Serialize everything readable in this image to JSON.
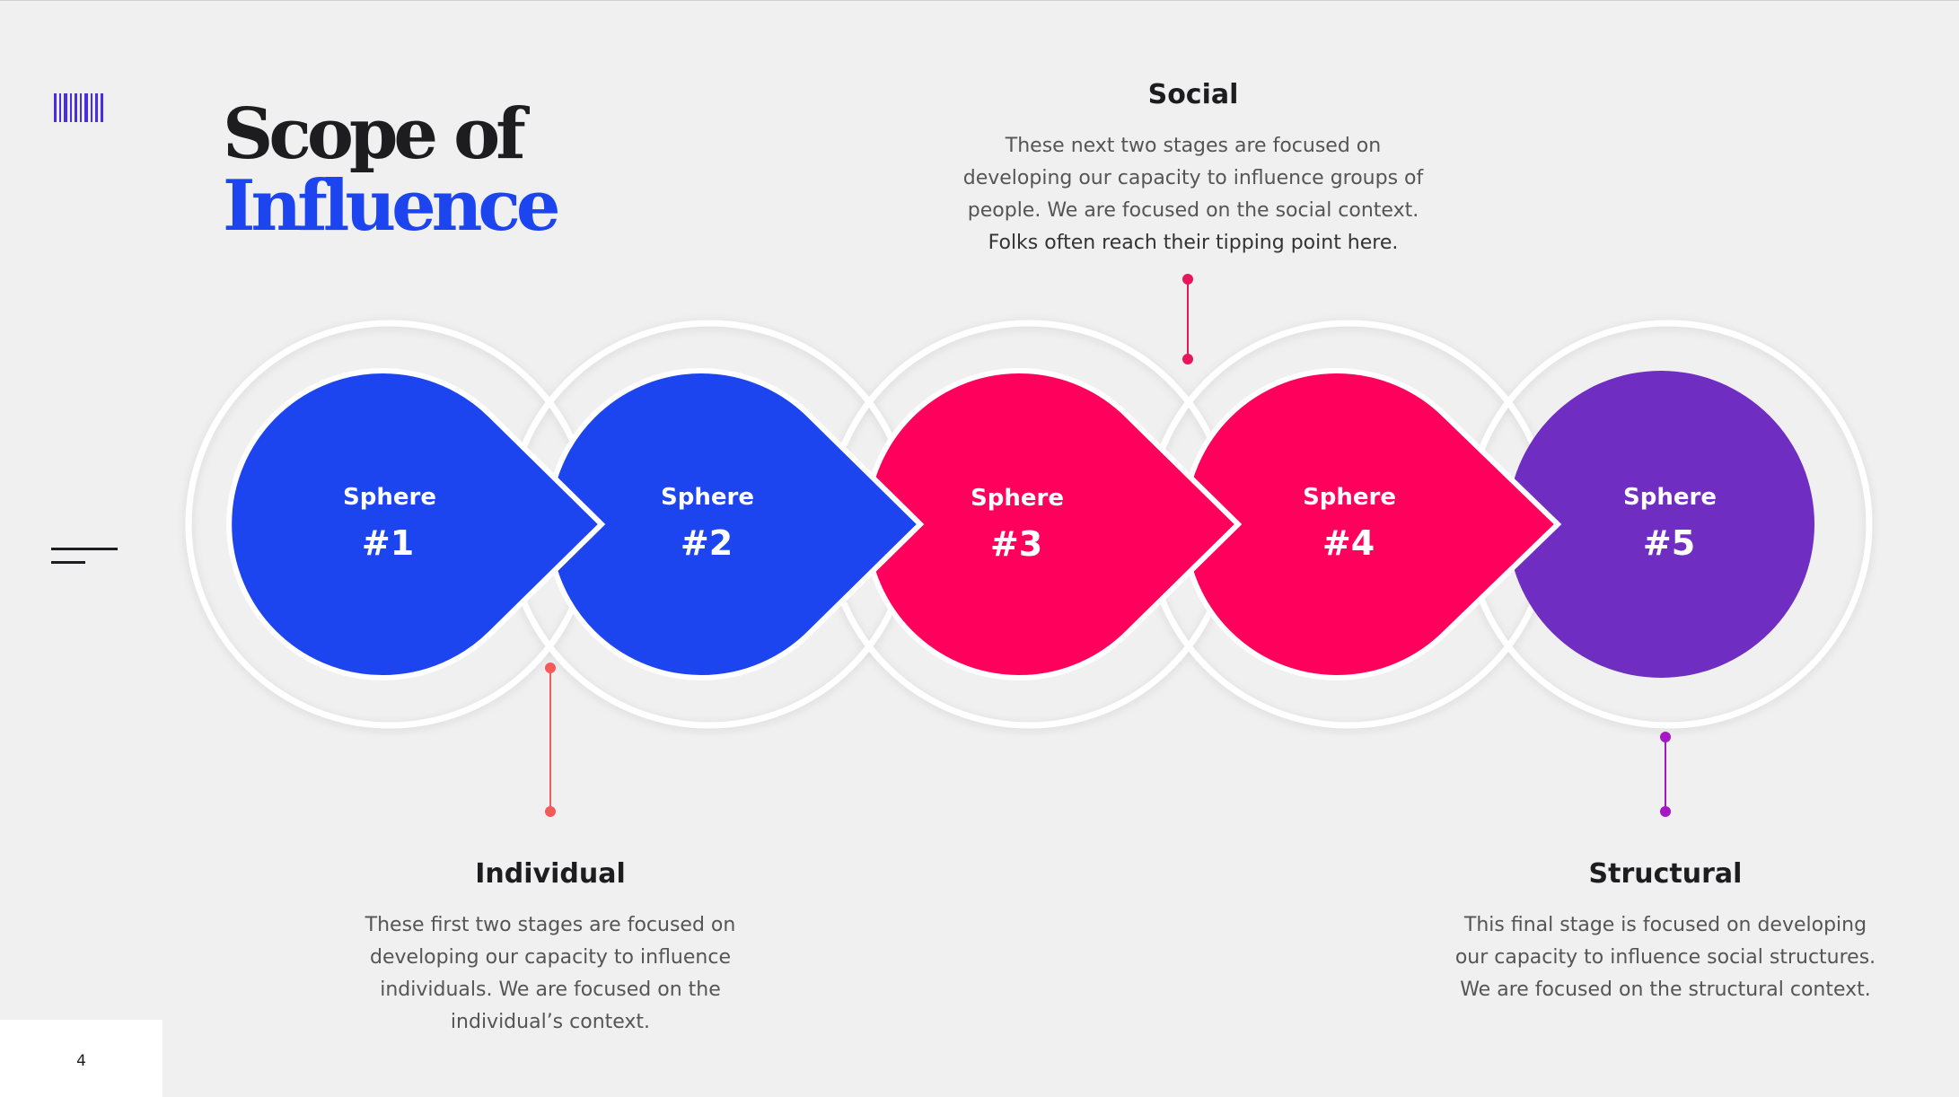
{
  "title": {
    "line1": "Scope of",
    "line2": "Influence"
  },
  "colors": {
    "blue": "#1c44ef",
    "pink": "#ff005c",
    "purple": "#6f2dc1",
    "accent_red": "#f55a5a",
    "accent_pink": "#e8175d",
    "accent_purple": "#a617c4"
  },
  "spheres": [
    {
      "label": "Sphere",
      "number": "#1"
    },
    {
      "label": "Sphere",
      "number": "#2"
    },
    {
      "label": "Sphere",
      "number": "#3"
    },
    {
      "label": "Sphere",
      "number": "#4"
    },
    {
      "label": "Sphere",
      "number": "#5"
    }
  ],
  "social": {
    "heading": "Social",
    "line1": "These next two stages are focused on",
    "line2": "developing our capacity to influence groups of",
    "line3": "people. We are focused on the social context.",
    "line4": "Folks often reach their tipping point here."
  },
  "individual": {
    "heading": "Individual",
    "line1": "These first two stages are focused on",
    "line2": "developing our capacity to influence",
    "line3": "individuals. We are focused on the",
    "line4": "individual’s context."
  },
  "structural": {
    "heading": "Structural",
    "line1": "This final stage is focused on developing",
    "line2": "our capacity to influence social structures.",
    "line3": "We are focused on the structural context."
  },
  "page_number": "4"
}
